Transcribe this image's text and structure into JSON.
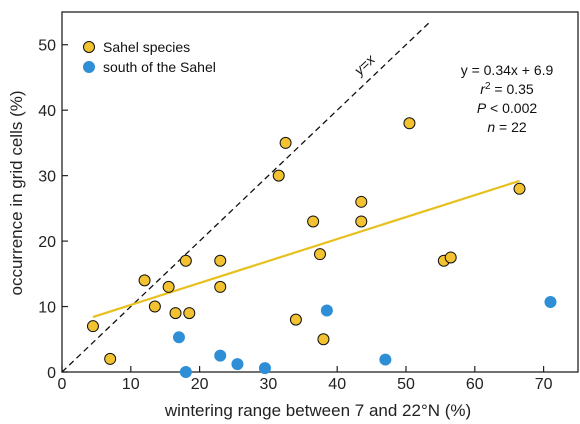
{
  "chart_data": {
    "type": "scatter",
    "xlabel": "wintering range between 7 and 22°N (%)",
    "ylabel": "occurrence in grid cells (%)",
    "xlim": [
      0,
      75
    ],
    "ylim": [
      0,
      55
    ],
    "xticks": [
      0,
      10,
      20,
      30,
      40,
      50,
      60,
      70
    ],
    "yticks": [
      0,
      10,
      20,
      30,
      40,
      50
    ],
    "grid": false,
    "legend_position": "top-left",
    "series": [
      {
        "name": "Sahel species",
        "color": "#F2C230",
        "points": [
          [
            4.5,
            7
          ],
          [
            7,
            2
          ],
          [
            12,
            14
          ],
          [
            13.5,
            10
          ],
          [
            15.5,
            13
          ],
          [
            16.5,
            9
          ],
          [
            18,
            17
          ],
          [
            18.5,
            9
          ],
          [
            23,
            17
          ],
          [
            23,
            13
          ],
          [
            31.5,
            30
          ],
          [
            32.5,
            35
          ],
          [
            34,
            8
          ],
          [
            36.5,
            23
          ],
          [
            37.5,
            18
          ],
          [
            38,
            5
          ],
          [
            43.5,
            26
          ],
          [
            43.5,
            23
          ],
          [
            50.5,
            38
          ],
          [
            55.5,
            17
          ],
          [
            56.5,
            17.5
          ],
          [
            66.5,
            28
          ]
        ]
      },
      {
        "name": "south of the Sahel",
        "color": "#2E8FD6",
        "points": [
          [
            17,
            5.3
          ],
          [
            18,
            0
          ],
          [
            23,
            2.5
          ],
          [
            25.5,
            1.2
          ],
          [
            29.5,
            0.6
          ],
          [
            38.5,
            9.4
          ],
          [
            47,
            1.9
          ],
          [
            71,
            10.7
          ]
        ]
      }
    ],
    "regression": {
      "x": [
        4.5,
        66.5
      ],
      "y": [
        8.4,
        29.2
      ],
      "color": "#E8C01E"
    },
    "identity_line": {
      "label": "y=x",
      "x": [
        0,
        53.7
      ],
      "y": [
        0,
        53.7
      ]
    },
    "annotations": {
      "equation": "y = 0.34x + 6.9",
      "r2_symbol": "r",
      "r2_exp": "2",
      "r2_value": " = 0.35",
      "p_symbol": "P",
      "p_value": " < 0.002",
      "n_symbol": "n",
      "n_value": " = 22"
    }
  }
}
